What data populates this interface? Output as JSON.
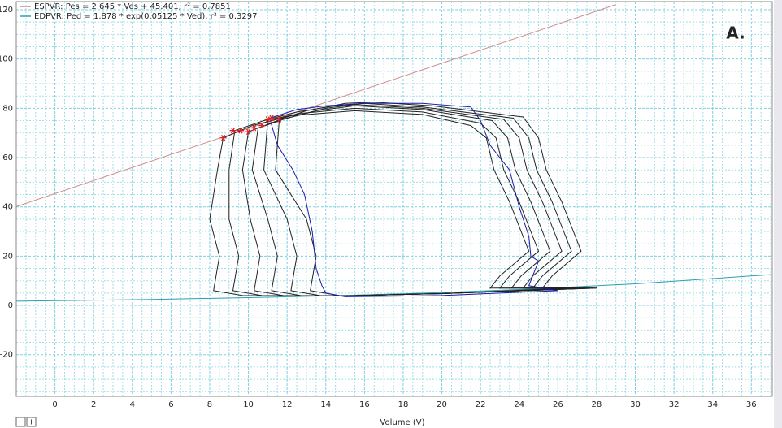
{
  "chart_data": {
    "type": "line",
    "annotation": "A.",
    "x_label": "Volume (V)",
    "xlim": [
      -2,
      37.08
    ],
    "ylim": [
      -36.9,
      123.3
    ],
    "xticks": [
      0,
      2,
      4,
      6,
      8,
      10,
      12,
      14,
      16,
      18,
      20,
      22,
      24,
      26,
      28,
      30,
      32,
      34,
      36
    ],
    "yticks": [
      -20,
      0,
      20,
      40,
      60,
      80,
      100,
      120
    ],
    "grid": true,
    "legend_corner": "top-left",
    "series": [
      {
        "name": "ESPVR: Pes = 2.645 * Ves + 45.401, r² = 0.7851",
        "color": "#d48a8a",
        "x": [
          -2,
          29
        ],
        "values": [
          40.11,
          122.1
        ]
      },
      {
        "name": "EDPVR: Ped = 1.878 * exp(0.05125 * Ved), r² = 0.3297",
        "color": "#2b9fb3",
        "x": [
          -2,
          5,
          10,
          15,
          20,
          25,
          30,
          37
        ],
        "values": [
          1.7,
          2.43,
          3.14,
          4.05,
          5.23,
          6.76,
          8.74,
          12.51
        ]
      },
      {
        "color": "#222222",
        "x": [
          8.7,
          10.2,
          12.2,
          15.5,
          19,
          21.5,
          22.3,
          22.7,
          23.5,
          24.1,
          24.5,
          23,
          22.5,
          26.5,
          20,
          15,
          9.7,
          8.2,
          8.5,
          8,
          8.4,
          8.7
        ],
        "values": [
          68,
          73,
          77,
          79,
          77.5,
          73,
          68,
          55,
          42,
          30,
          22,
          12,
          7,
          7,
          4.8,
          3.9,
          4,
          6,
          20,
          35,
          55,
          68
        ]
      },
      {
        "color": "#222222",
        "x": [
          9.3,
          10.8,
          12.8,
          15.5,
          19,
          22,
          22.8,
          23.2,
          24,
          24.6,
          25,
          23.5,
          23,
          27,
          20,
          15,
          10.7,
          9.2,
          9.5,
          9,
          9,
          9.3
        ],
        "values": [
          71,
          75,
          78,
          80,
          78.5,
          74,
          68,
          55,
          42,
          30,
          22,
          12,
          7,
          7,
          4.8,
          3.9,
          4,
          6,
          20,
          35,
          55,
          71
        ]
      },
      {
        "color": "#222222",
        "x": [
          10,
          11.5,
          13.5,
          15.5,
          19,
          22.6,
          23.4,
          23.8,
          24.6,
          25.2,
          25.6,
          24.1,
          23.6,
          27.5,
          20,
          15,
          11.8,
          10.3,
          10.6,
          10.1,
          9.7,
          10
        ],
        "values": [
          70.5,
          75,
          79,
          81,
          79.5,
          75,
          68,
          55,
          42,
          30,
          22,
          12,
          7,
          7,
          4.8,
          3.9,
          4,
          6,
          20,
          35,
          55,
          70.5
        ]
      },
      {
        "color": "#222222",
        "x": [
          10.5,
          12,
          14,
          15.5,
          19,
          23.2,
          24,
          24.4,
          25.2,
          25.8,
          26.2,
          24.7,
          24.2,
          27.8,
          20,
          15,
          12.7,
          11.2,
          11.5,
          11,
          10.2,
          10.5
        ],
        "values": [
          72,
          76,
          80,
          81.5,
          80,
          75.5,
          68,
          55,
          42,
          30,
          22,
          12,
          7,
          7,
          4.8,
          3.9,
          4,
          6,
          20,
          35,
          55,
          72
        ]
      },
      {
        "color": "#222222",
        "x": [
          11,
          12.5,
          14.5,
          16,
          19,
          23.7,
          24.5,
          24.9,
          25.7,
          26.3,
          26.7,
          25.2,
          24.7,
          28,
          20,
          15,
          13.7,
          12.2,
          12.5,
          12,
          10.8,
          11
        ],
        "values": [
          75.5,
          78.5,
          81,
          82,
          80.5,
          76,
          68,
          55,
          42,
          30,
          22,
          12,
          7,
          7,
          4.8,
          3.9,
          4,
          6,
          20,
          35,
          55,
          75.5
        ]
      },
      {
        "color": "#222222",
        "x": [
          11.6,
          13,
          15,
          16.5,
          19.5,
          24.2,
          25,
          25.4,
          26.2,
          26.8,
          27.2,
          25.7,
          25.2,
          28,
          20,
          15,
          14.7,
          13.2,
          13.5,
          13,
          11.4,
          11.6
        ],
        "values": [
          75.5,
          79,
          82,
          82.5,
          81,
          76.5,
          68,
          55,
          42,
          30,
          22,
          12,
          7,
          7,
          4.8,
          3.9,
          4,
          6,
          20,
          35,
          55,
          75.5
        ]
      },
      {
        "color": "#1a1aa8",
        "x": [
          11.1,
          12.5,
          14,
          16,
          19,
          21.5,
          22,
          22.5,
          23.5,
          24,
          24.5,
          24.6,
          25,
          24.5,
          26,
          20,
          15,
          14,
          13.8,
          13.5,
          13.3,
          12.9,
          12.3,
          11.5,
          11.1
        ],
        "values": [
          76,
          79.5,
          81,
          82,
          82,
          80.5,
          75,
          65,
          55,
          40,
          28,
          20,
          18,
          8,
          6,
          4,
          3.5,
          5,
          8,
          15,
          30,
          45,
          55,
          65,
          76
        ]
      }
    ],
    "es_points": {
      "color": "#e02020",
      "x": [
        8.7,
        9.2,
        9.6,
        10.0,
        10.3,
        10.7,
        11.0,
        11.2,
        11.6
      ],
      "values": [
        68,
        71,
        71,
        70.5,
        72,
        73,
        75.5,
        76,
        75.5
      ]
    }
  },
  "controls": {
    "zoom_out": "−",
    "zoom_in": "+"
  }
}
